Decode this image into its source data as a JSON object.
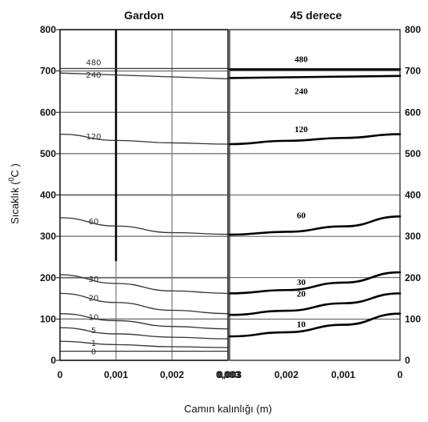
{
  "chart_data": {
    "type": "line",
    "ylabel_text": "Sıcaklık (",
    "ylabel_sup": "0",
    "ylabel_unit": "C )",
    "xlabel": "Camın kalınlığı (m)",
    "ylim": [
      0,
      800
    ],
    "yticks": [
      "0",
      "100",
      "200",
      "300",
      "400",
      "500",
      "600",
      "700",
      "800"
    ],
    "panels": [
      {
        "title": "Gardon",
        "xlim": [
          0,
          0.003
        ],
        "xticks": [
          {
            "value": 0,
            "label": "0"
          },
          {
            "value": 0.001,
            "label": "0,001"
          },
          {
            "value": 0.002,
            "label": "0,002"
          },
          {
            "value": 0.003,
            "label": "0,003"
          }
        ],
        "series": [
          {
            "name": "480",
            "x": [
              0,
              0.003
            ],
            "y": [
              706,
              706
            ]
          },
          {
            "name": "240",
            "x": [
              0,
              0.003
            ],
            "y": [
              695,
              681
            ]
          },
          {
            "name": "120",
            "x": [
              0,
              0.001,
              0.002,
              0.003
            ],
            "y": [
              547,
              532,
              526,
              523
            ]
          },
          {
            "name": "60",
            "x": [
              0,
              0.001,
              0.002,
              0.003
            ],
            "y": [
              345,
              325,
              309,
              305
            ]
          },
          {
            "name": "30",
            "x": [
              0,
              0.001,
              0.002,
              0.003
            ],
            "y": [
              207,
              186,
              168,
              162
            ]
          },
          {
            "name": "20",
            "x": [
              0,
              0.001,
              0.002,
              0.003
            ],
            "y": [
              162,
              140,
              121,
              113
            ]
          },
          {
            "name": "10",
            "x": [
              0,
              0.001,
              0.002,
              0.003
            ],
            "y": [
              113,
              96,
              82,
              76
            ]
          },
          {
            "name": "5",
            "x": [
              0,
              0.001,
              0.002,
              0.003
            ],
            "y": [
              79,
              64,
              56,
              52
            ]
          },
          {
            "name": "1",
            "x": [
              0,
              0.001,
              0.002,
              0.003
            ],
            "y": [
              46,
              38,
              33,
              31
            ]
          },
          {
            "name": "0",
            "x": [
              0,
              0.003
            ],
            "y": [
              22,
              22
            ]
          }
        ]
      },
      {
        "title": "45 derece",
        "xlim": [
          0.003,
          0
        ],
        "xticks": [
          {
            "value": 0.003,
            "label": "0,003"
          },
          {
            "value": 0.002,
            "label": "0,002"
          },
          {
            "value": 0.001,
            "label": "0,001"
          },
          {
            "value": 0,
            "label": "0"
          }
        ],
        "series": [
          {
            "name": "480",
            "x": [
              0.003,
              0
            ],
            "y": [
              704,
              704
            ]
          },
          {
            "name": "240",
            "x": [
              0.003,
              0
            ],
            "y": [
              683,
              688
            ]
          },
          {
            "name": "120",
            "x": [
              0.003,
              0.002,
              0.001,
              0
            ],
            "y": [
              523,
              531,
              538,
              547
            ]
          },
          {
            "name": "60",
            "x": [
              0.003,
              0.002,
              0.001,
              0
            ],
            "y": [
              304,
              311,
              324,
              348
            ]
          },
          {
            "name": "30",
            "x": [
              0.003,
              0.002,
              0.001,
              0
            ],
            "y": [
              162,
              170,
              188,
              213
            ]
          },
          {
            "name": "20",
            "x": [
              0.003,
              0.002,
              0.001,
              0
            ],
            "y": [
              110,
              120,
              138,
              162
            ]
          },
          {
            "name": "10",
            "x": [
              0.003,
              0.002,
              0.001,
              0
            ],
            "y": [
              58,
              68,
              86,
              113
            ]
          }
        ]
      }
    ]
  }
}
